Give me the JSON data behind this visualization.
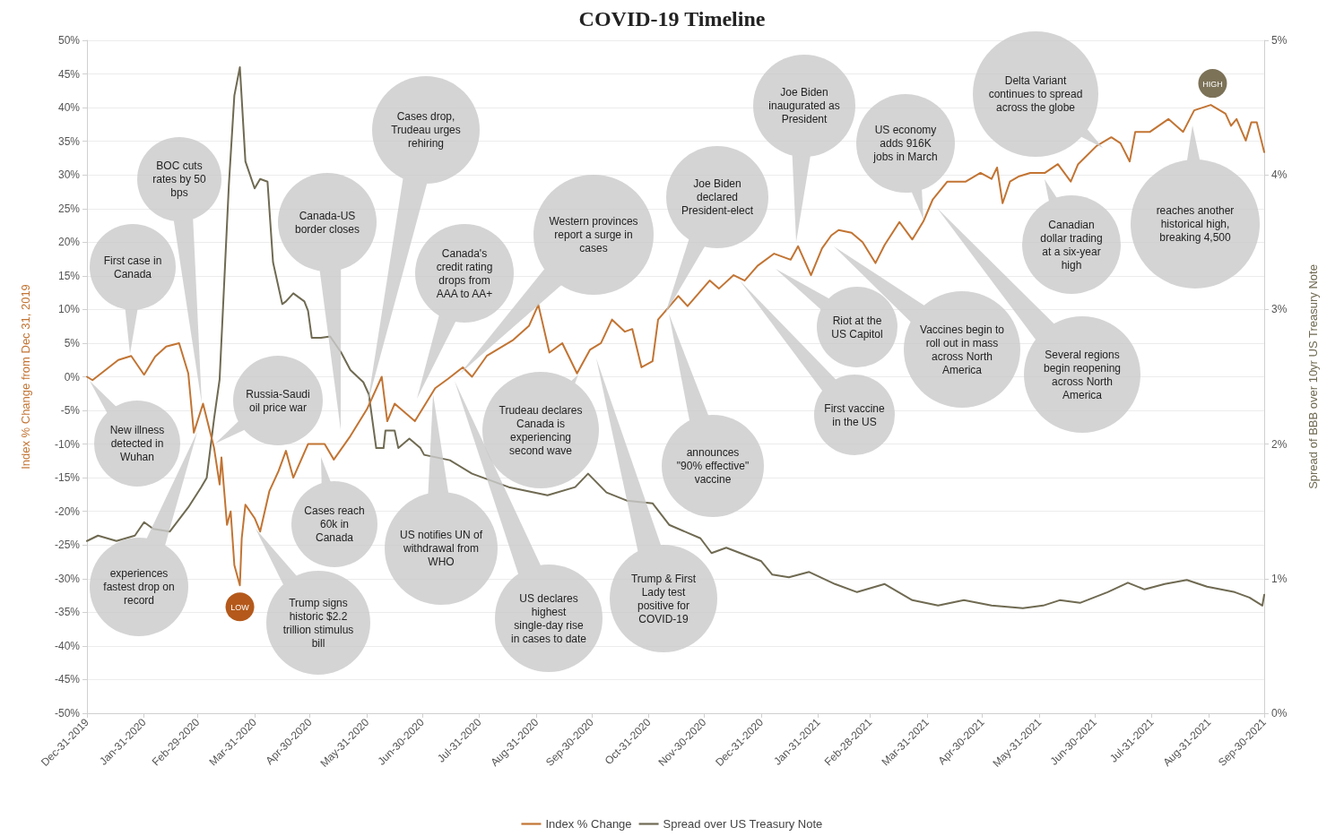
{
  "chart_data": {
    "type": "line",
    "title": "COVID-19 Timeline",
    "ylabel": "Index % Change from Dec 31, 2019",
    "y2label": "Spread of BBB over 10yr US Treasury Note",
    "xlim": [
      "2019-12-31",
      "2021-09-30"
    ],
    "xticks": [
      {
        "value": "2019-12-31",
        "label": "Dec-31-2019"
      },
      {
        "value": "2020-01-31",
        "label": "Jan-31-2020"
      },
      {
        "value": "2020-02-29",
        "label": "Feb-29-2020"
      },
      {
        "value": "2020-03-31",
        "label": "Mar-31-2020"
      },
      {
        "value": "2020-04-30",
        "label": "Apr-30-2020"
      },
      {
        "value": "2020-05-31",
        "label": "May-31-2020"
      },
      {
        "value": "2020-06-30",
        "label": "Jun-30-2020"
      },
      {
        "value": "2020-07-31",
        "label": "Jul-31-2020"
      },
      {
        "value": "2020-08-31",
        "label": "Aug-31-2020"
      },
      {
        "value": "2020-09-30",
        "label": "Sep-30-2020"
      },
      {
        "value": "2020-10-31",
        "label": "Oct-31-2020"
      },
      {
        "value": "2020-11-30",
        "label": "Nov-30-2020"
      },
      {
        "value": "2020-12-31",
        "label": "Dec-31-2020"
      },
      {
        "value": "2021-01-31",
        "label": "Jan-31-2021"
      },
      {
        "value": "2021-02-28",
        "label": "Feb-28-2021"
      },
      {
        "value": "2021-03-31",
        "label": "Mar-31-2021"
      },
      {
        "value": "2021-04-30",
        "label": "Apr-30-2021"
      },
      {
        "value": "2021-05-31",
        "label": "May-31-2021"
      },
      {
        "value": "2021-06-30",
        "label": "Jun-30-2021"
      },
      {
        "value": "2021-07-31",
        "label": "Jul-31-2021"
      },
      {
        "value": "2021-08-31",
        "label": "Aug-31-2021"
      },
      {
        "value": "2021-09-30",
        "label": "Sep-30-2021"
      }
    ],
    "ylim": [
      -50,
      50
    ],
    "yticks": [
      {
        "value": -50,
        "label": "-50%"
      },
      {
        "value": -45,
        "label": "-45%"
      },
      {
        "value": -40,
        "label": "-40%"
      },
      {
        "value": -35,
        "label": "-35%"
      },
      {
        "value": -30,
        "label": "-30%"
      },
      {
        "value": -25,
        "label": "-25%"
      },
      {
        "value": -20,
        "label": "-20%"
      },
      {
        "value": -15,
        "label": "-15%"
      },
      {
        "value": -10,
        "label": "-10%"
      },
      {
        "value": -5,
        "label": "-5%"
      },
      {
        "value": 0,
        "label": "0%"
      },
      {
        "value": 5,
        "label": "5%"
      },
      {
        "value": 10,
        "label": "10%"
      },
      {
        "value": 15,
        "label": "15%"
      },
      {
        "value": 20,
        "label": "20%"
      },
      {
        "value": 25,
        "label": "25%"
      },
      {
        "value": 30,
        "label": "30%"
      },
      {
        "value": 35,
        "label": "35%"
      },
      {
        "value": 40,
        "label": "40%"
      },
      {
        "value": 45,
        "label": "45%"
      },
      {
        "value": 50,
        "label": "50%"
      }
    ],
    "y2lim": [
      0,
      5
    ],
    "y2ticks": [
      {
        "value": 0,
        "label": "0%"
      },
      {
        "value": 1,
        "label": "1%"
      },
      {
        "value": 2,
        "label": "2%"
      },
      {
        "value": 3,
        "label": "3%"
      },
      {
        "value": 4,
        "label": "4%"
      },
      {
        "value": 5,
        "label": "5%"
      }
    ],
    "grid": "y",
    "legend": "bottom",
    "marker": "none",
    "series": [
      {
        "name": "Index % Change",
        "color": "#c27433",
        "x": [
          "2019-12-31",
          "2020-01-03",
          "2020-01-10",
          "2020-01-17",
          "2020-01-24",
          "2020-01-31",
          "2020-02-06",
          "2020-02-12",
          "2020-02-19",
          "2020-02-24",
          "2020-02-27",
          "2020-03-03",
          "2020-03-09",
          "2020-03-12",
          "2020-03-13",
          "2020-03-16",
          "2020-03-18",
          "2020-03-20",
          "2020-03-23",
          "2020-03-24",
          "2020-03-26",
          "2020-03-31",
          "2020-04-03",
          "2020-04-08",
          "2020-04-13",
          "2020-04-17",
          "2020-04-21",
          "2020-04-29",
          "2020-05-08",
          "2020-05-13",
          "2020-05-22",
          "2020-05-31",
          "2020-06-08",
          "2020-06-11",
          "2020-06-15",
          "2020-06-26",
          "2020-07-07",
          "2020-07-14",
          "2020-07-22",
          "2020-07-27",
          "2020-08-04",
          "2020-08-18",
          "2020-08-27",
          "2020-09-01",
          "2020-09-07",
          "2020-09-14",
          "2020-09-22",
          "2020-09-29",
          "2020-10-05",
          "2020-10-11",
          "2020-10-18",
          "2020-10-22",
          "2020-10-27",
          "2020-11-02",
          "2020-11-05",
          "2020-11-16",
          "2020-11-21",
          "2020-12-03",
          "2020-12-08",
          "2020-12-16",
          "2020-12-22",
          "2020-12-29",
          "2021-01-07",
          "2021-01-16",
          "2021-01-20",
          "2021-01-27",
          "2021-02-02",
          "2021-02-07",
          "2021-02-11",
          "2021-02-18",
          "2021-02-24",
          "2021-03-03",
          "2021-03-08",
          "2021-03-16",
          "2021-03-23",
          "2021-03-29",
          "2021-04-03",
          "2021-04-11",
          "2021-04-21",
          "2021-04-29",
          "2021-05-05",
          "2021-05-08",
          "2021-05-11",
          "2021-05-15",
          "2021-05-20",
          "2021-05-26",
          "2021-06-03",
          "2021-06-10",
          "2021-06-17",
          "2021-06-21",
          "2021-07-01",
          "2021-07-09",
          "2021-07-14",
          "2021-07-19",
          "2021-07-22",
          "2021-07-30",
          "2021-08-09",
          "2021-08-17",
          "2021-08-23",
          "2021-09-01",
          "2021-09-09",
          "2021-09-12",
          "2021-09-15",
          "2021-09-20",
          "2021-09-23",
          "2021-09-26",
          "2021-09-30"
        ],
        "values": [
          0,
          -0.5,
          1.0,
          2.5,
          3.1,
          0.3,
          3.0,
          4.5,
          5.0,
          0.5,
          -8.3,
          -4,
          -10.6,
          -16,
          -12,
          -22,
          -20,
          -28,
          -31,
          -24,
          -19,
          -21,
          -23,
          -17,
          -14,
          -11,
          -15,
          -10,
          -10,
          -12.3,
          -8.8,
          -4.8,
          0,
          -6.6,
          -4,
          -6.6,
          -1.7,
          -0.3,
          1.4,
          0,
          3.1,
          5.4,
          7.6,
          10.7,
          3.6,
          5,
          0.5,
          4,
          5,
          8.5,
          6.7,
          7.1,
          1.4,
          2.3,
          8.5,
          12,
          10.5,
          14.3,
          13.1,
          15.1,
          14.3,
          16.5,
          18.3,
          17.4,
          19.4,
          15.1,
          19.1,
          21,
          21.8,
          21.4,
          20,
          16.9,
          19.6,
          23,
          20.4,
          23.1,
          26.3,
          29,
          29,
          30.3,
          29.4,
          31.1,
          25.8,
          29,
          29.8,
          30.3,
          30.3,
          31.6,
          29,
          31.6,
          34.3,
          35.6,
          34.7,
          32,
          36.4,
          36.4,
          38.3,
          36.4,
          39.6,
          40.4,
          39.1,
          37.3,
          38.3,
          35.1,
          37.8,
          37.8,
          33.4
        ]
      },
      {
        "name": "Spread over US Treasury Note",
        "color": "#6f6a52",
        "axis": "y2",
        "x": [
          "2019-12-31",
          "2020-01-06",
          "2020-01-16",
          "2020-01-26",
          "2020-01-31",
          "2020-02-05",
          "2020-02-14",
          "2020-02-24",
          "2020-03-02",
          "2020-03-05",
          "2020-03-09",
          "2020-03-12",
          "2020-03-17",
          "2020-03-20",
          "2020-03-23",
          "2020-03-26",
          "2020-03-31",
          "2020-04-03",
          "2020-04-07",
          "2020-04-10",
          "2020-04-15",
          "2020-04-17",
          "2020-04-21",
          "2020-04-27",
          "2020-04-29",
          "2020-05-01",
          "2020-05-06",
          "2020-05-11",
          "2020-05-17",
          "2020-05-22",
          "2020-05-29",
          "2020-06-01",
          "2020-06-05",
          "2020-06-09",
          "2020-06-10",
          "2020-06-15",
          "2020-06-17",
          "2020-06-23",
          "2020-06-29",
          "2020-07-01",
          "2020-07-15",
          "2020-07-27",
          "2020-08-05",
          "2020-08-16",
          "2020-09-06",
          "2020-09-21",
          "2020-09-28",
          "2020-10-08",
          "2020-10-19",
          "2020-11-02",
          "2020-11-11",
          "2020-11-28",
          "2020-12-04",
          "2020-12-12",
          "2020-12-31",
          "2021-01-06",
          "2021-01-15",
          "2021-01-26",
          "2021-02-09",
          "2021-02-21",
          "2021-03-08",
          "2021-03-23",
          "2021-04-06",
          "2021-04-20",
          "2021-05-05",
          "2021-05-22",
          "2021-06-02",
          "2021-06-11",
          "2021-06-22",
          "2021-07-07",
          "2021-07-18",
          "2021-07-27",
          "2021-08-07",
          "2021-08-19",
          "2021-08-30",
          "2021-09-14",
          "2021-09-22",
          "2021-09-29",
          "2021-09-30"
        ],
        "values": [
          1.28,
          1.32,
          1.28,
          1.32,
          1.42,
          1.37,
          1.35,
          1.53,
          1.68,
          1.75,
          2.19,
          2.48,
          3.92,
          4.59,
          4.8,
          4.1,
          3.9,
          3.97,
          3.95,
          3.35,
          3.04,
          3.06,
          3.12,
          3.06,
          2.99,
          2.79,
          2.79,
          2.8,
          2.68,
          2.55,
          2.46,
          2.37,
          1.97,
          1.97,
          2.1,
          2.1,
          1.97,
          2.04,
          1.97,
          1.92,
          1.88,
          1.78,
          null,
          1.68,
          1.62,
          1.68,
          1.78,
          1.64,
          1.58,
          1.56,
          1.4,
          1.3,
          1.19,
          1.23,
          1.13,
          1.03,
          1.01,
          1.05,
          0.96,
          0.9,
          0.96,
          0.84,
          0.8,
          0.84,
          0.8,
          0.78,
          0.8,
          0.84,
          0.82,
          0.9,
          0.97,
          0.92,
          0.96,
          0.99,
          0.94,
          0.9,
          0.86,
          0.8,
          0.88
        ]
      }
    ],
    "annotations": [
      "First case in Canada",
      "BOC cuts rates by 50 bps",
      "New illness detected in Wuhan",
      "experiences fastest drop on record",
      "Russia-Saudi oil price war",
      "Canada-US border closes",
      "Cases drop, Trudeau urges rehiring",
      "Cases reach 60k in Canada",
      "Trump signs historic $2.2 trillion stimulus bill",
      "Canada's credit rating drops from AAA to AA+",
      "US notifies UN of withdrawal from WHO",
      "Western provinces report a surge in cases",
      "Trudeau declares Canada is experiencing second wave",
      "US declares highest single-day rise in cases to date",
      "Trump & First Lady test positive for COVID-19",
      "Joe Biden declared President-elect",
      "announces \"90% effective\" vaccine",
      "Joe Biden inaugurated as President",
      "Riot at the US Capitol",
      "First vaccine in the US",
      "US economy adds 916K jobs in March",
      "Vaccines begin to roll out in mass across North America",
      "Several regions begin reopening across North America",
      "Delta Variant continues to spread across the globe",
      "Canadian dollar trading at a six-year high",
      "reaches another historical high, breaking 4,500",
      {
        "text": "LOW",
        "x": "2020-03-23",
        "y": -31
      },
      {
        "text": "HIGH",
        "x": "2021-09-02",
        "y": 40.4
      }
    ]
  }
}
